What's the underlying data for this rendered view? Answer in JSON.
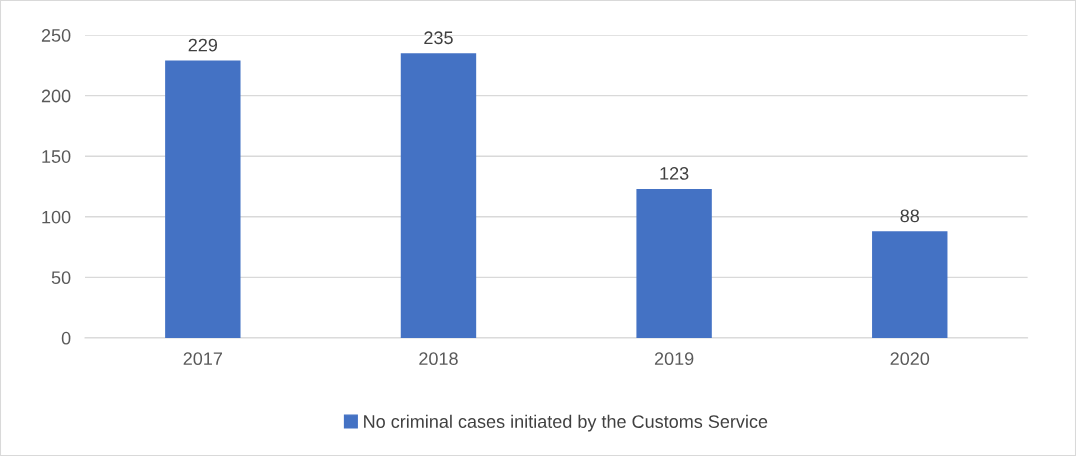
{
  "chart_data": {
    "type": "bar",
    "categories": [
      "2017",
      "2018",
      "2019",
      "2020"
    ],
    "series": [
      {
        "name": "No criminal cases initiated by the Customs Service",
        "color": "#4472c4",
        "values": [
          229,
          235,
          123,
          88
        ]
      }
    ],
    "ylim": [
      0,
      250
    ],
    "yticks": [
      0,
      50,
      100,
      150,
      200,
      250
    ],
    "grid": "y",
    "legend": "bottom",
    "data_labels": true
  }
}
